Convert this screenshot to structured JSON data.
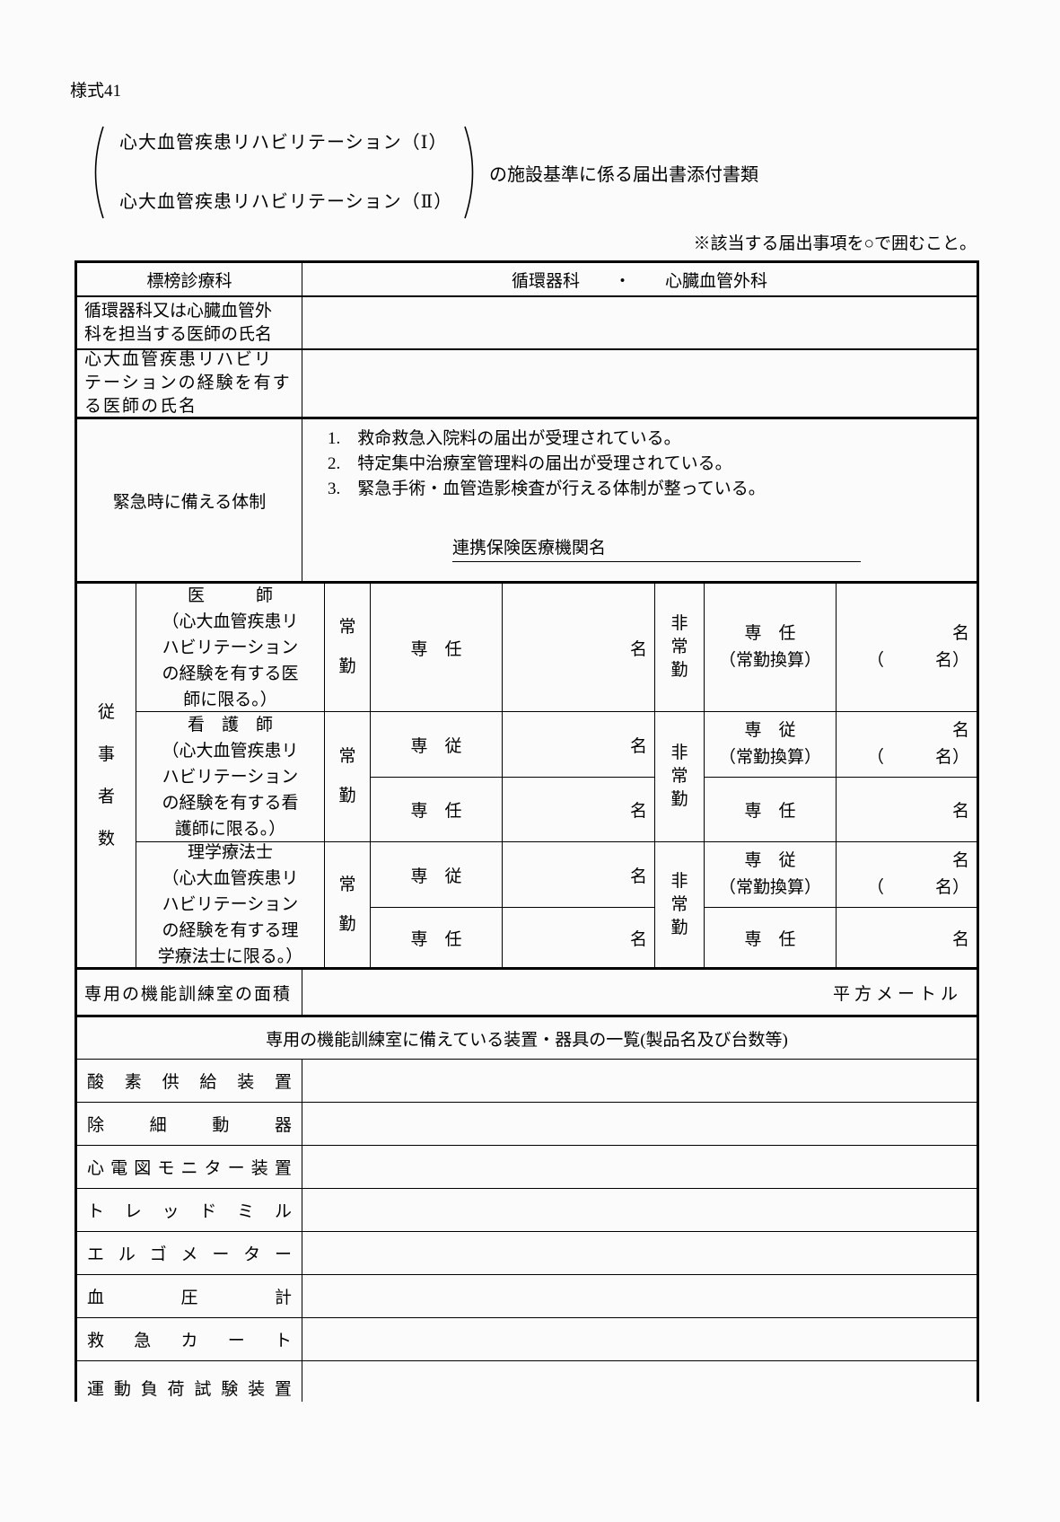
{
  "header": {
    "form_no": "様式41",
    "bracket_line1": "心大血管疾患リハビリテーション（Ⅰ）",
    "bracket_line2": "心大血管疾患リハビリテーション（Ⅱ）",
    "suffix": "の施設基準に係る届出書添付書類",
    "note": "※該当する届出事項を○で囲むこと。"
  },
  "table": {
    "dept": {
      "label": "標榜診療科",
      "value": "循環器科　　・　　心臓血管外科"
    },
    "attending": {
      "label": "循環器科又は心臓血管外\n科を担当する医師の氏名",
      "value": ""
    },
    "experienced": {
      "label": "心大血管疾患リハビリ\nテーションの経験を有す\nる医師の氏名",
      "value": ""
    },
    "emergency": {
      "label": "緊急時に備える体制",
      "item1": "1.　救命救急入院料の届出が受理されている。",
      "item2": "2.　特定集中治療室管理料の届出が受理されている。",
      "item3": "3.　緊急手術・血管造影検査が行える体制が整っている。",
      "partner": "連携保険医療機関名"
    },
    "staff": {
      "group": "従\n事\n者\n数",
      "doctor": {
        "title": "医　　　師",
        "note": "（心大血管疾患リ\nハビリテーション\nの経験を有する医\n師に限る。）",
        "fulltime": "常\n勤",
        "ft_role": "専　任",
        "ft_unit": "名",
        "parttime": "非\n常\n勤",
        "pt_role": "専　任\n（常勤換算）",
        "pt_unit": "名\n（　　　名）"
      },
      "nurse": {
        "title": "看　護　師",
        "note": "（心大血管疾患リ\nハビリテーション\nの経験を有する看\n護師に限る。）",
        "fulltime": "常\n勤",
        "parttime": "非\n常\n勤",
        "r1_role": "専　従",
        "r1_unit": "名",
        "r1_pt_role": "専　従\n（常勤換算）",
        "r1_pt_unit": "名\n（　　　名）",
        "r2_role": "専　任",
        "r2_unit": "名",
        "r2_pt_role": "専　任",
        "r2_pt_unit": "名"
      },
      "therapist": {
        "title": "理学療法士",
        "note": "（心大血管疾患リ\nハビリテーション\nの経験を有する理\n学療法士に限る。）",
        "fulltime": "常\n勤",
        "parttime": "非\n常\n勤",
        "r1_role": "専　従",
        "r1_unit": "名",
        "r1_pt_role": "専　従\n（常勤換算）",
        "r1_pt_unit": "名\n（　　　名）",
        "r2_role": "専　任",
        "r2_unit": "名",
        "r2_pt_role": "専　任",
        "r2_pt_unit": "名"
      }
    },
    "room": {
      "label": "専用の機能訓練室の面積",
      "value": "",
      "unit": "平方メートル"
    },
    "equipment": {
      "header": "専用の機能訓練室に備えている装置・器具の一覧(製品名及び台数等)",
      "items": [
        "酸素供給装置",
        "除細動器",
        "心電図モニター装置",
        "トレッドミル",
        "エルゴメーター",
        "血圧計",
        "救急カート",
        "運動負荷試験装置"
      ]
    }
  }
}
